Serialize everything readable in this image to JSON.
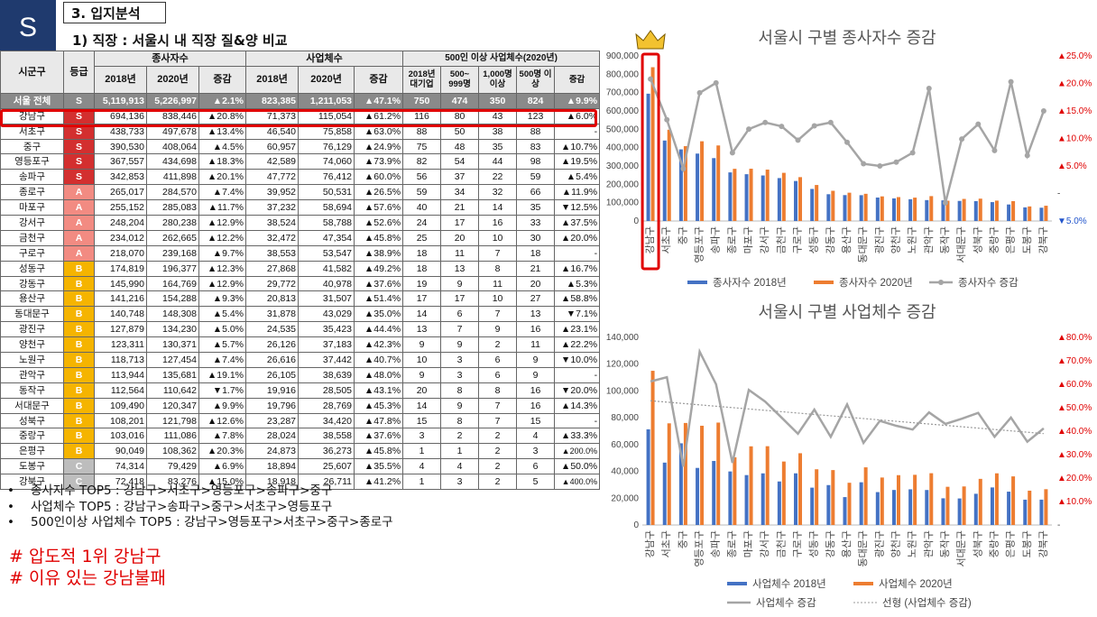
{
  "header": {
    "badge": "S",
    "section_title": "3. 입지분석",
    "subtitle": "1) 직장 : 서울시 내 직장 질&양 비교"
  },
  "table": {
    "headers": {
      "district": "시군구",
      "grade": "등급",
      "workers": "종사자수",
      "businesses": "사업체수",
      "large": "500인 이상 사업체수(2020년)",
      "y2018": "2018년",
      "y2020": "2020년",
      "change": "증감",
      "large_cols": [
        "2018년 대기업",
        "500~ 999명",
        "1,000명 이상",
        "500명 이상",
        "증감"
      ]
    },
    "total": [
      "서울 전체",
      "S",
      "5,119,913",
      "5,226,997",
      "▲2.1%",
      "823,385",
      "1,211,053",
      "▲47.1%",
      "750",
      "474",
      "350",
      "824",
      "▲9.9%"
    ],
    "rows": [
      [
        "강남구",
        "S",
        "694,136",
        "838,446",
        "▲20.8%",
        "71,373",
        "115,054",
        "▲61.2%",
        "116",
        "80",
        "43",
        "123",
        "▲6.0%"
      ],
      [
        "서초구",
        "S",
        "438,733",
        "497,678",
        "▲13.4%",
        "46,540",
        "75,858",
        "▲63.0%",
        "88",
        "50",
        "38",
        "88",
        "-"
      ],
      [
        "중구",
        "S",
        "390,530",
        "408,064",
        "▲4.5%",
        "60,957",
        "76,129",
        "▲24.9%",
        "75",
        "48",
        "35",
        "83",
        "▲10.7%"
      ],
      [
        "영등포구",
        "S",
        "367,557",
        "434,698",
        "▲18.3%",
        "42,589",
        "74,060",
        "▲73.9%",
        "82",
        "54",
        "44",
        "98",
        "▲19.5%"
      ],
      [
        "송파구",
        "S",
        "342,853",
        "411,898",
        "▲20.1%",
        "47,772",
        "76,412",
        "▲60.0%",
        "56",
        "37",
        "22",
        "59",
        "▲5.4%"
      ],
      [
        "종로구",
        "A",
        "265,017",
        "284,570",
        "▲7.4%",
        "39,952",
        "50,531",
        "▲26.5%",
        "59",
        "34",
        "32",
        "66",
        "▲11.9%"
      ],
      [
        "마포구",
        "A",
        "255,152",
        "285,083",
        "▲11.7%",
        "37,232",
        "58,694",
        "▲57.6%",
        "40",
        "21",
        "14",
        "35",
        "▼12.5%"
      ],
      [
        "강서구",
        "A",
        "248,204",
        "280,238",
        "▲12.9%",
        "38,524",
        "58,788",
        "▲52.6%",
        "24",
        "17",
        "16",
        "33",
        "▲37.5%"
      ],
      [
        "금천구",
        "A",
        "234,012",
        "262,665",
        "▲12.2%",
        "32,472",
        "47,354",
        "▲45.8%",
        "25",
        "20",
        "10",
        "30",
        "▲20.0%"
      ],
      [
        "구로구",
        "A",
        "218,070",
        "239,168",
        "▲9.7%",
        "38,553",
        "53,547",
        "▲38.9%",
        "18",
        "11",
        "7",
        "18",
        "-"
      ],
      [
        "성동구",
        "B",
        "174,819",
        "196,377",
        "▲12.3%",
        "27,868",
        "41,582",
        "▲49.2%",
        "18",
        "13",
        "8",
        "21",
        "▲16.7%"
      ],
      [
        "강동구",
        "B",
        "145,990",
        "164,769",
        "▲12.9%",
        "29,772",
        "40,978",
        "▲37.6%",
        "19",
        "9",
        "11",
        "20",
        "▲5.3%"
      ],
      [
        "용산구",
        "B",
        "141,216",
        "154,288",
        "▲9.3%",
        "20,813",
        "31,507",
        "▲51.4%",
        "17",
        "17",
        "10",
        "27",
        "▲58.8%"
      ],
      [
        "동대문구",
        "B",
        "140,748",
        "148,308",
        "▲5.4%",
        "31,878",
        "43,029",
        "▲35.0%",
        "14",
        "6",
        "7",
        "13",
        "▼7.1%"
      ],
      [
        "광진구",
        "B",
        "127,879",
        "134,230",
        "▲5.0%",
        "24,535",
        "35,423",
        "▲44.4%",
        "13",
        "7",
        "9",
        "16",
        "▲23.1%"
      ],
      [
        "양천구",
        "B",
        "123,311",
        "130,371",
        "▲5.7%",
        "26,126",
        "37,183",
        "▲42.3%",
        "9",
        "9",
        "2",
        "11",
        "▲22.2%"
      ],
      [
        "노원구",
        "B",
        "118,713",
        "127,454",
        "▲7.4%",
        "26,616",
        "37,442",
        "▲40.7%",
        "10",
        "3",
        "6",
        "9",
        "▼10.0%"
      ],
      [
        "관악구",
        "B",
        "113,944",
        "135,681",
        "▲19.1%",
        "26,105",
        "38,639",
        "▲48.0%",
        "9",
        "3",
        "6",
        "9",
        "-"
      ],
      [
        "동작구",
        "B",
        "112,564",
        "110,642",
        "▼1.7%",
        "19,916",
        "28,505",
        "▲43.1%",
        "20",
        "8",
        "8",
        "16",
        "▼20.0%"
      ],
      [
        "서대문구",
        "B",
        "109,490",
        "120,347",
        "▲9.9%",
        "19,796",
        "28,769",
        "▲45.3%",
        "14",
        "9",
        "7",
        "16",
        "▲14.3%"
      ],
      [
        "성북구",
        "B",
        "108,201",
        "121,798",
        "▲12.6%",
        "23,287",
        "34,420",
        "▲47.8%",
        "15",
        "8",
        "7",
        "15",
        "-"
      ],
      [
        "중랑구",
        "B",
        "103,016",
        "111,086",
        "▲7.8%",
        "28,024",
        "38,558",
        "▲37.6%",
        "3",
        "2",
        "2",
        "4",
        "▲33.3%"
      ],
      [
        "은평구",
        "B",
        "90,049",
        "108,362",
        "▲20.3%",
        "24,873",
        "36,273",
        "▲45.8%",
        "1",
        "1",
        "2",
        "3",
        "▲200.0%"
      ],
      [
        "도봉구",
        "C",
        "74,314",
        "79,429",
        "▲6.9%",
        "18,894",
        "25,607",
        "▲35.5%",
        "4",
        "4",
        "2",
        "6",
        "▲50.0%"
      ],
      [
        "강북구",
        "C",
        "72,418",
        "83,276",
        "▲15.0%",
        "18,918",
        "26,711",
        "▲41.2%",
        "1",
        "3",
        "2",
        "5",
        "▲400.0%"
      ]
    ]
  },
  "bullets": [
    "종사자수 TOP5 : 강남구>서초구>영등포구>송파구>중구",
    "사업체수 TOP5 : 강남구>송파구>중구>서초구>영등포구",
    "500인이상 사업체수 TOP5 : 강남구>영등포구>서초구>중구>종로구"
  ],
  "notes": [
    "# 압도적 1위 강남구",
    "# 이유 있는 강남불패"
  ],
  "colors": {
    "bar2018": "#4472c4",
    "bar2020": "#ed7d31",
    "line": "#a5a5a5",
    "badge": "#1f3a6e",
    "highlight": "#e00000"
  },
  "chart_data": [
    {
      "type": "bar",
      "title": "서울시 구별 종사자수 증감",
      "categories": [
        "강남구",
        "서초구",
        "중구",
        "영등포구",
        "송파구",
        "종로구",
        "마포구",
        "강서구",
        "금천구",
        "구로구",
        "성동구",
        "강동구",
        "용산구",
        "동대문구",
        "광진구",
        "양천구",
        "노원구",
        "관악구",
        "동작구",
        "서대문구",
        "성북구",
        "중랑구",
        "은평구",
        "도봉구",
        "강북구"
      ],
      "series": [
        {
          "name": "종사자수 2018년",
          "values": [
            694136,
            438733,
            390530,
            367557,
            342853,
            265017,
            255152,
            248204,
            234012,
            218070,
            174819,
            145990,
            141216,
            140748,
            127879,
            123311,
            118713,
            113944,
            112564,
            109490,
            108201,
            103016,
            90049,
            74314,
            72418
          ]
        },
        {
          "name": "종사자수 2020년",
          "values": [
            838446,
            497678,
            408064,
            434698,
            411898,
            284570,
            285083,
            280238,
            262665,
            239168,
            196377,
            164769,
            154288,
            148308,
            134230,
            130371,
            127454,
            135681,
            110642,
            120347,
            121798,
            111086,
            108362,
            79429,
            83276
          ]
        },
        {
          "name": "종사자수 증감",
          "axis": "right",
          "values": [
            20.8,
            13.4,
            4.5,
            18.3,
            20.1,
            7.4,
            11.7,
            12.9,
            12.2,
            9.7,
            12.3,
            12.9,
            9.3,
            5.4,
            5.0,
            5.7,
            7.4,
            19.1,
            -1.7,
            9.9,
            12.6,
            7.8,
            20.3,
            6.9,
            15.0
          ]
        }
      ],
      "ylim": [
        0,
        900000
      ],
      "y_ticks": [
        "0",
        "100,000",
        "200,000",
        "300,000",
        "400,000",
        "500,000",
        "600,000",
        "700,000",
        "800,000",
        "900,000"
      ],
      "y2lim": [
        -5,
        25
      ],
      "y2_ticks": [
        "▼5.0%",
        "-",
        "▲5.0%",
        "▲10.0%",
        "▲15.0%",
        "▲20.0%",
        "▲25.0%"
      ],
      "legend_position": "bottom"
    },
    {
      "type": "bar",
      "title": "서울시 구별 사업체수 증감",
      "categories": [
        "강남구",
        "서초구",
        "중구",
        "영등포구",
        "송파구",
        "종로구",
        "마포구",
        "강서구",
        "금천구",
        "구로구",
        "성동구",
        "강동구",
        "용산구",
        "동대문구",
        "광진구",
        "양천구",
        "노원구",
        "관악구",
        "동작구",
        "서대문구",
        "성북구",
        "중랑구",
        "은평구",
        "도봉구",
        "강북구"
      ],
      "series": [
        {
          "name": "사업체수 2018년",
          "values": [
            71373,
            46540,
            60957,
            42589,
            47772,
            39952,
            37232,
            38524,
            32472,
            38553,
            27868,
            29772,
            20813,
            31878,
            24535,
            26126,
            26616,
            26105,
            19916,
            19796,
            23287,
            28024,
            24873,
            18894,
            18918
          ]
        },
        {
          "name": "사업체수 2020년",
          "values": [
            115054,
            75858,
            76129,
            74060,
            76412,
            50531,
            58694,
            58788,
            47354,
            53547,
            41582,
            40978,
            31507,
            43029,
            35423,
            37183,
            37442,
            38639,
            28505,
            28769,
            34420,
            38558,
            36273,
            25607,
            26711
          ]
        },
        {
          "name": "사업체수 증감",
          "axis": "right",
          "values": [
            61.2,
            63.0,
            24.9,
            73.9,
            60.0,
            26.5,
            57.6,
            52.6,
            45.8,
            38.9,
            49.2,
            37.6,
            51.4,
            35.0,
            44.4,
            42.3,
            40.7,
            48.0,
            43.1,
            45.3,
            47.8,
            37.6,
            45.8,
            35.5,
            41.2
          ]
        },
        {
          "name": "선형 (사업체수 증감)",
          "axis": "right",
          "trend": true
        }
      ],
      "ylim": [
        0,
        140000
      ],
      "y_ticks": [
        "0",
        "20,000",
        "40,000",
        "60,000",
        "80,000",
        "100,000",
        "120,000",
        "140,000"
      ],
      "y2lim": [
        0,
        80
      ],
      "y2_ticks": [
        "-",
        "▲10.0%",
        "▲20.0%",
        "▲30.0%",
        "▲40.0%",
        "▲50.0%",
        "▲60.0%",
        "▲70.0%",
        "▲80.0%"
      ],
      "legend_position": "bottom"
    }
  ]
}
